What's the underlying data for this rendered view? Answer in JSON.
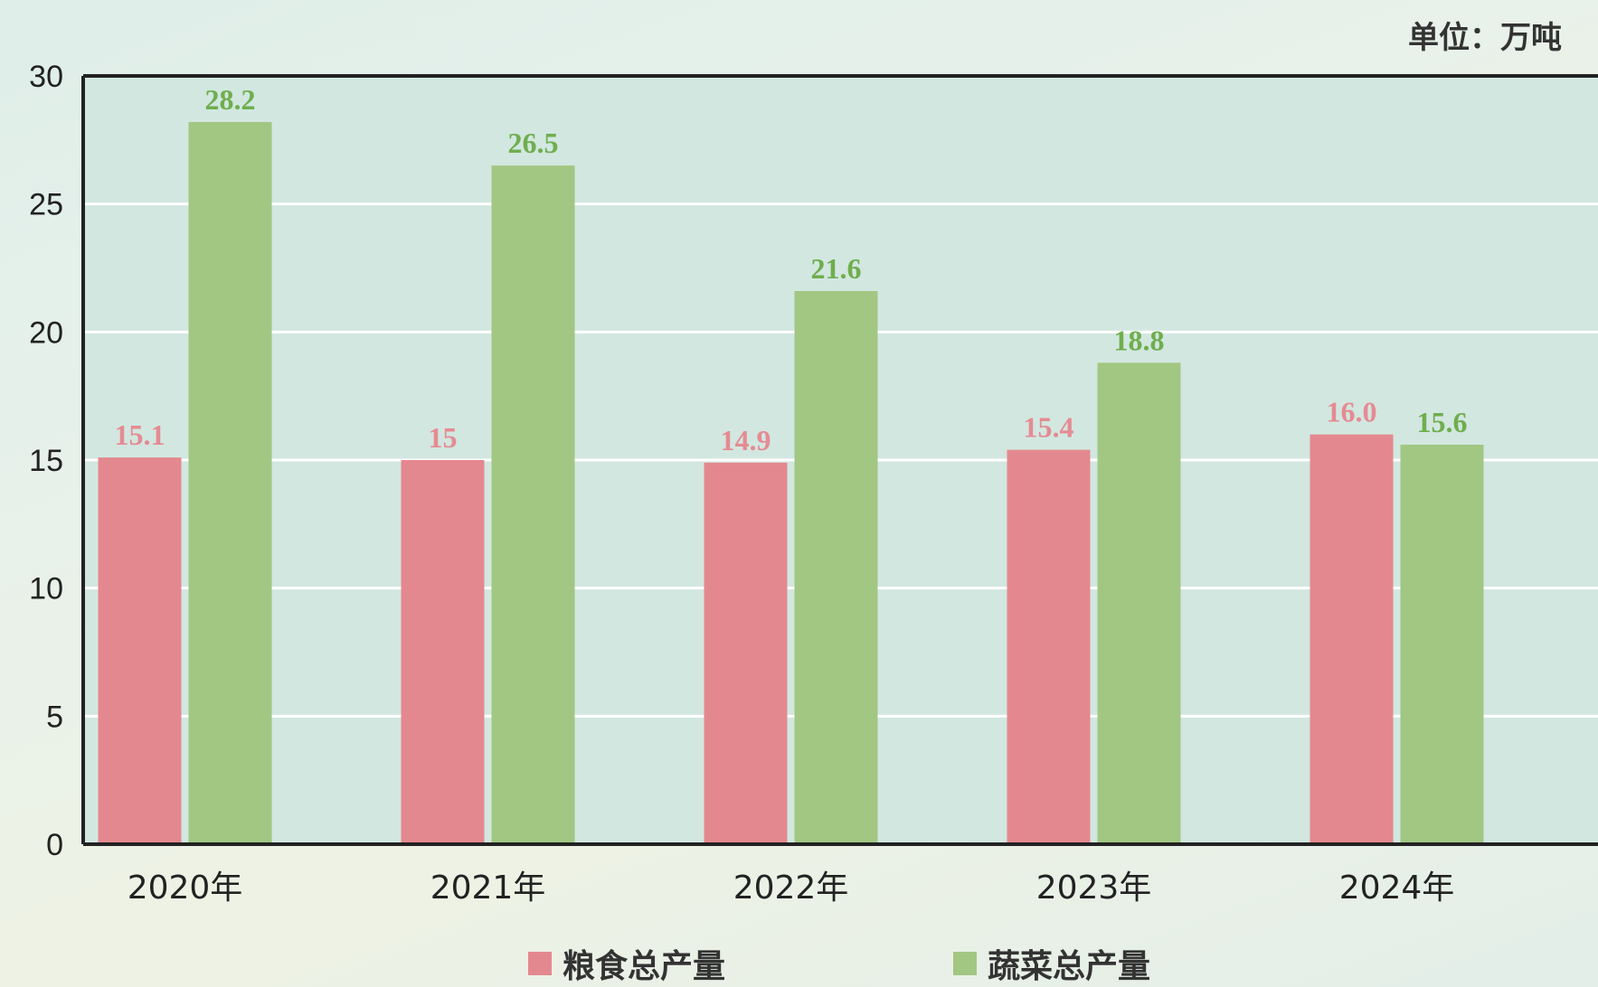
{
  "unit_label": "单位：万吨",
  "chart_data": {
    "type": "bar",
    "categories": [
      "2020年",
      "2021年",
      "2022年",
      "2023年",
      "2024年"
    ],
    "series": [
      {
        "name": "粮食总产量",
        "values": [
          15.1,
          15,
          14.9,
          15.4,
          16.0
        ],
        "labels": [
          "15.1",
          "15",
          "14.9",
          "15.4",
          "16.0"
        ],
        "color": "#e4888f",
        "label_color": "#e58b93"
      },
      {
        "name": "蔬菜总产量",
        "values": [
          28.2,
          26.5,
          21.6,
          18.8,
          15.6
        ],
        "labels": [
          "28.2",
          "26.5",
          "21.6",
          "18.8",
          "15.6"
        ],
        "color": "#a1c783",
        "label_color": "#6fae4e"
      }
    ],
    "ylim": [
      0,
      30
    ],
    "yticks": [
      "0",
      "5",
      "10",
      "15",
      "20",
      "25",
      "30"
    ],
    "grid": true,
    "legend_position": "bottom",
    "plot_background": "#d2e7e0"
  }
}
